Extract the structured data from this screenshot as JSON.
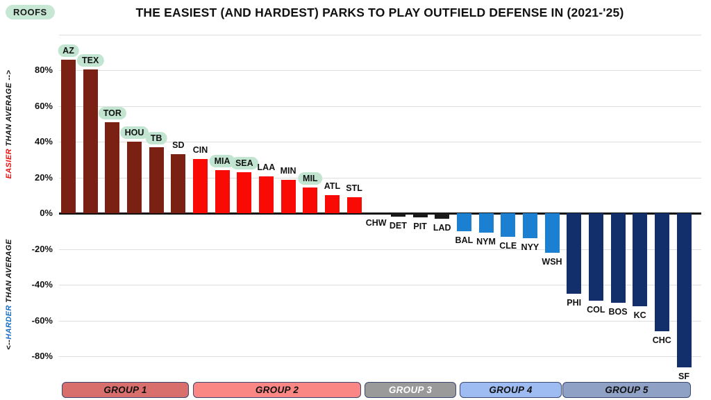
{
  "roofs_badge": "ROOFS",
  "title": "THE EASIEST (AND HARDEST) PARKS TO PLAY OUTFIELD DEFENSE IN (2021-'25)",
  "y_axis": {
    "positive_label": {
      "em": "EASIER",
      "rest": " THAN AVERAGE -->"
    },
    "negative_label": {
      "pre": "<--",
      "em": "HARDER",
      "rest": " THAN AVERAGE"
    },
    "ticks": [
      {
        "v": 80,
        "label": "80%"
      },
      {
        "v": 60,
        "label": "60%"
      },
      {
        "v": 40,
        "label": "40%"
      },
      {
        "v": 20,
        "label": "20%"
      },
      {
        "v": 0,
        "label": "0%"
      },
      {
        "v": -20,
        "label": "-20%"
      },
      {
        "v": -40,
        "label": "-40%"
      },
      {
        "v": -60,
        "label": "-60%"
      },
      {
        "v": -80,
        "label": "-80%"
      }
    ]
  },
  "colors": {
    "group1": "#7B2114",
    "group2": "#FA0A05",
    "group3": "#1A1A1A",
    "group4": "#1B80D1",
    "group5": "#122E6B",
    "roof_badge_bg": "#C2E5D1",
    "easier_text": "#E8130F",
    "harder_text": "#1B6FC4",
    "gridline": "#DEDEDE"
  },
  "chart_data": {
    "type": "bar",
    "title": "THE EASIEST (AND HARDEST) PARKS TO PLAY OUTFIELD DEFENSE IN (2021-'25)",
    "ylabel": "percent easier (positive) or harder (negative) than average",
    "ylim": [
      -90,
      100
    ],
    "gridlines_pct": [
      100,
      80,
      60,
      40,
      20,
      -20,
      -40,
      -60,
      -80
    ],
    "bars": [
      {
        "team": "AZ",
        "value_pct": 86,
        "roof": true,
        "group": "group1"
      },
      {
        "team": "TEX",
        "value_pct": 80.5,
        "roof": true,
        "group": "group1"
      },
      {
        "team": "TOR",
        "value_pct": 51,
        "roof": true,
        "group": "group1"
      },
      {
        "team": "HOU",
        "value_pct": 40,
        "roof": true,
        "group": "group1"
      },
      {
        "team": "TB",
        "value_pct": 37,
        "roof": true,
        "group": "group1"
      },
      {
        "team": "SD",
        "value_pct": 33,
        "roof": false,
        "group": "group1"
      },
      {
        "team": "CIN",
        "value_pct": 30.5,
        "roof": false,
        "group": "group2"
      },
      {
        "team": "MIA",
        "value_pct": 24,
        "roof": true,
        "group": "group2"
      },
      {
        "team": "SEA",
        "value_pct": 23,
        "roof": true,
        "group": "group2"
      },
      {
        "team": "LAA",
        "value_pct": 20.5,
        "roof": false,
        "group": "group2"
      },
      {
        "team": "MIN",
        "value_pct": 18.5,
        "roof": false,
        "group": "group2"
      },
      {
        "team": "MIL",
        "value_pct": 14.5,
        "roof": true,
        "group": "group2"
      },
      {
        "team": "ATL",
        "value_pct": 10,
        "roof": false,
        "group": "group2"
      },
      {
        "team": "STL",
        "value_pct": 9,
        "roof": false,
        "group": "group2"
      },
      {
        "team": "CHW",
        "value_pct": -0.5,
        "roof": false,
        "group": "group3"
      },
      {
        "team": "DET",
        "value_pct": -2,
        "roof": false,
        "group": "group3"
      },
      {
        "team": "PIT",
        "value_pct": -2.5,
        "roof": false,
        "group": "group3"
      },
      {
        "team": "LAD",
        "value_pct": -3,
        "roof": false,
        "group": "group3"
      },
      {
        "team": "BAL",
        "value_pct": -10,
        "roof": false,
        "group": "group4"
      },
      {
        "team": "NYM",
        "value_pct": -11,
        "roof": false,
        "group": "group4"
      },
      {
        "team": "CLE",
        "value_pct": -13,
        "roof": false,
        "group": "group4"
      },
      {
        "team": "NYY",
        "value_pct": -14,
        "roof": false,
        "group": "group4"
      },
      {
        "team": "WSH",
        "value_pct": -22,
        "roof": false,
        "group": "group4"
      },
      {
        "team": "PHI",
        "value_pct": -45,
        "roof": false,
        "group": "group5"
      },
      {
        "team": "COL",
        "value_pct": -49,
        "roof": false,
        "group": "group5"
      },
      {
        "team": "BOS",
        "value_pct": -50,
        "roof": false,
        "group": "group5"
      },
      {
        "team": "KC",
        "value_pct": -52,
        "roof": false,
        "group": "group5"
      },
      {
        "team": "CHC",
        "value_pct": -66,
        "roof": false,
        "group": "group5"
      },
      {
        "team": "SF",
        "value_pct": -86,
        "roof": false,
        "group": "group5"
      }
    ]
  },
  "legend": {
    "groups": [
      {
        "label": "GROUP 1",
        "fill": "#D96F6C",
        "text": "#101010"
      },
      {
        "label": "GROUP 2",
        "fill": "#FB8784",
        "text": "#101010"
      },
      {
        "label": "GROUP 3",
        "fill": "#9A9A9A",
        "text": "#FFFFFF"
      },
      {
        "label": "GROUP 4",
        "fill": "#9FBCF2",
        "text": "#101010"
      },
      {
        "label": "GROUP 5",
        "fill": "#8FA1C4",
        "text": "#101010"
      }
    ]
  }
}
